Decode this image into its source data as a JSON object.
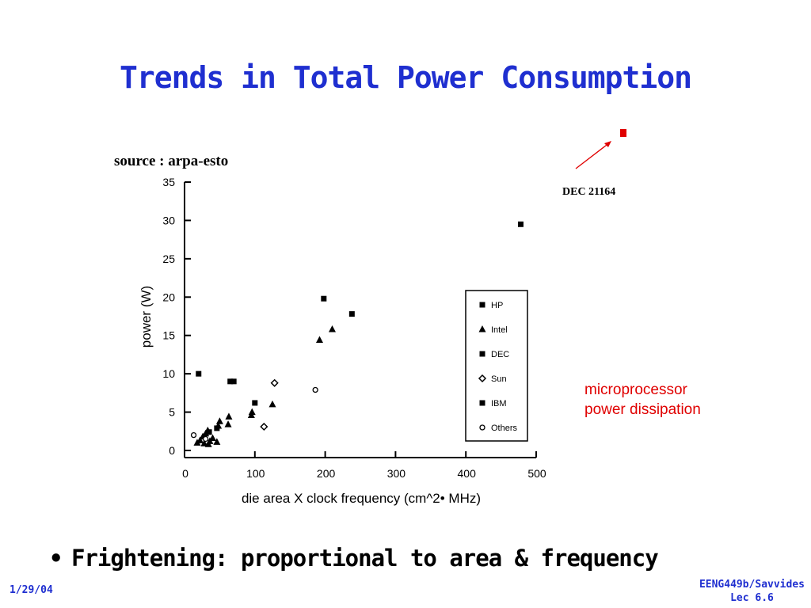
{
  "slide": {
    "title": "Trends in Total Power Consumption",
    "source": "source : arpa-esto",
    "dec_label": "DEC 21164",
    "annotation_line1": "microprocessor",
    "annotation_line2": "power dissipation",
    "bullet": "Frightening: proportional to area & frequency",
    "bullet_marker": "•",
    "date": "1/29/04",
    "footer_line1": "EENG449b/Savvides",
    "footer_line2": "Lec 6.6",
    "accent_color": "#1f2fd0",
    "annotation_color": "#e00000"
  },
  "chart_data": {
    "type": "scatter",
    "xlabel": "die area X clock frequency (cm^2• MHz)",
    "ylabel": "power (W)",
    "xlim": [
      0,
      500
    ],
    "ylim": [
      0,
      35
    ],
    "x_ticks": [
      0,
      100,
      200,
      300,
      400,
      500
    ],
    "y_ticks": [
      0,
      5,
      10,
      15,
      20,
      25,
      30,
      35
    ],
    "grid": false,
    "legend_position": "right",
    "series": [
      {
        "name": "HP",
        "marker": "square",
        "points": [
          [
            20,
            10
          ],
          [
            65,
            9
          ],
          [
            70,
            9
          ],
          [
            198,
            19.8
          ],
          [
            238,
            17.8
          ]
        ]
      },
      {
        "name": "Intel",
        "marker": "triangle",
        "points": [
          [
            18,
            1
          ],
          [
            22,
            1.3
          ],
          [
            26,
            1.8
          ],
          [
            30,
            2.2
          ],
          [
            33,
            2.6
          ],
          [
            36,
            1.2
          ],
          [
            40,
            1.6
          ],
          [
            46,
            1.1
          ],
          [
            48,
            3.2
          ],
          [
            50,
            3.8
          ],
          [
            62,
            3.4
          ],
          [
            63,
            4.4
          ],
          [
            95,
            4.6
          ],
          [
            96,
            5
          ],
          [
            125,
            6
          ],
          [
            192,
            14.4
          ],
          [
            210,
            15.8
          ],
          [
            28,
            0.9
          ],
          [
            34,
            0.8
          ]
        ]
      },
      {
        "name": "DEC",
        "marker": "square",
        "points": [
          [
            478,
            29.5
          ]
        ]
      },
      {
        "name": "Sun",
        "marker": "diamond",
        "points": [
          [
            128,
            8.8
          ],
          [
            113,
            3.1
          ]
        ]
      },
      {
        "name": "IBM",
        "marker": "square",
        "points": [
          [
            100,
            6.2
          ],
          [
            35,
            2.4
          ],
          [
            46,
            2.9
          ]
        ]
      },
      {
        "name": "Others",
        "marker": "circle",
        "points": [
          [
            13,
            2
          ],
          [
            186,
            7.9
          ],
          [
            30,
            1.5
          ]
        ]
      }
    ]
  }
}
